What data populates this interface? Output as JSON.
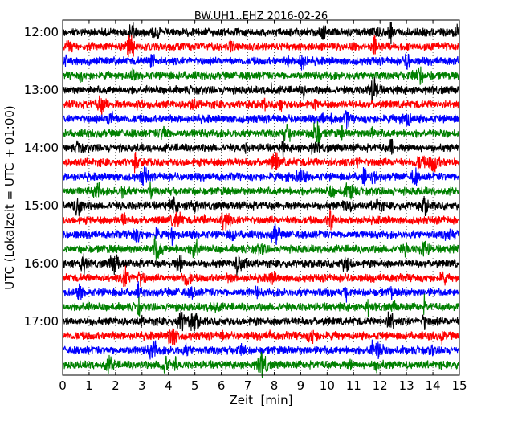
{
  "chart_data": {
    "type": "line",
    "title": "BW.UH1..EHZ 2016-02-26",
    "xlabel": "Zeit  [min]",
    "ylabel": "UTC (Lokalzeit = UTC + 01:00)",
    "xlim": [
      0,
      15
    ],
    "x_ticks": [
      "0",
      "1",
      "2",
      "3",
      "4",
      "5",
      "6",
      "7",
      "8",
      "9",
      "10",
      "11",
      "12",
      "13",
      "14",
      "15"
    ],
    "y_ticks": [
      {
        "label": "12:00",
        "offset_min": 0
      },
      {
        "label": "13:00",
        "offset_min": 60
      },
      {
        "label": "14:00",
        "offset_min": 120
      },
      {
        "label": "15:00",
        "offset_min": 180
      },
      {
        "label": "16:00",
        "offset_min": 240
      },
      {
        "label": "17:00",
        "offset_min": 300
      }
    ],
    "grid": "vertical dotted at each minute",
    "colors": [
      "#000000",
      "#ff0000",
      "#0000ff",
      "#008000"
    ],
    "traces": [
      {
        "start": "12:00"
      },
      {
        "start": "12:15"
      },
      {
        "start": "12:30"
      },
      {
        "start": "12:45"
      },
      {
        "start": "13:00"
      },
      {
        "start": "13:15"
      },
      {
        "start": "13:30"
      },
      {
        "start": "13:45"
      },
      {
        "start": "14:00"
      },
      {
        "start": "14:15"
      },
      {
        "start": "14:30"
      },
      {
        "start": "14:45"
      },
      {
        "start": "15:00"
      },
      {
        "start": "15:15"
      },
      {
        "start": "15:30"
      },
      {
        "start": "15:45"
      },
      {
        "start": "16:00"
      },
      {
        "start": "16:15"
      },
      {
        "start": "16:30"
      },
      {
        "start": "16:45"
      },
      {
        "start": "17:00"
      },
      {
        "start": "17:15"
      },
      {
        "start": "17:30"
      },
      {
        "start": "17:45"
      }
    ]
  }
}
